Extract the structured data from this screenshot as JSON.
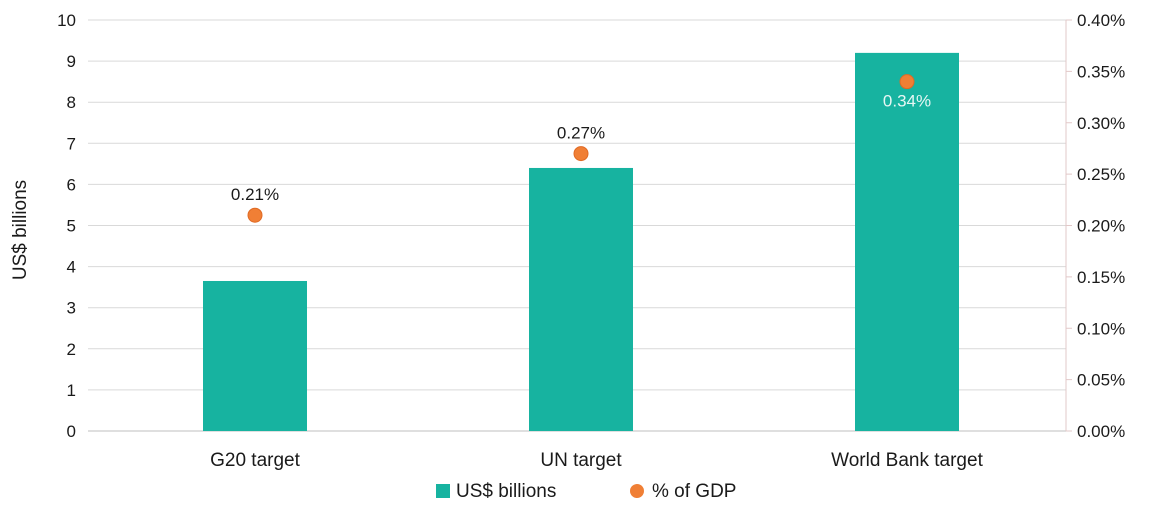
{
  "chart_data": {
    "type": "bar",
    "categories": [
      "G20 target",
      "UN target",
      "World Bank target"
    ],
    "series": [
      {
        "name": "US$ billions",
        "kind": "bar",
        "axis": "left",
        "values": [
          3.65,
          6.4,
          9.2
        ],
        "color": "#17b3a0"
      },
      {
        "name": "% of GDP",
        "kind": "scatter",
        "axis": "right",
        "values": [
          0.21,
          0.27,
          0.34
        ],
        "labels": [
          "0.21%",
          "0.27%",
          "0.34%"
        ],
        "color": "#f07f35"
      }
    ],
    "ylabel": "US$ billions",
    "ylim": [
      0,
      10
    ],
    "yticks": [
      "0",
      "1",
      "2",
      "3",
      "4",
      "5",
      "6",
      "7",
      "8",
      "9",
      "10"
    ],
    "y2lim": [
      0,
      0.4
    ],
    "y2ticks": [
      "0.00%",
      "0.05%",
      "0.10%",
      "0.15%",
      "0.20%",
      "0.25%",
      "0.30%",
      "0.35%",
      "0.40%"
    ],
    "grid": true,
    "legend": "bottom"
  }
}
